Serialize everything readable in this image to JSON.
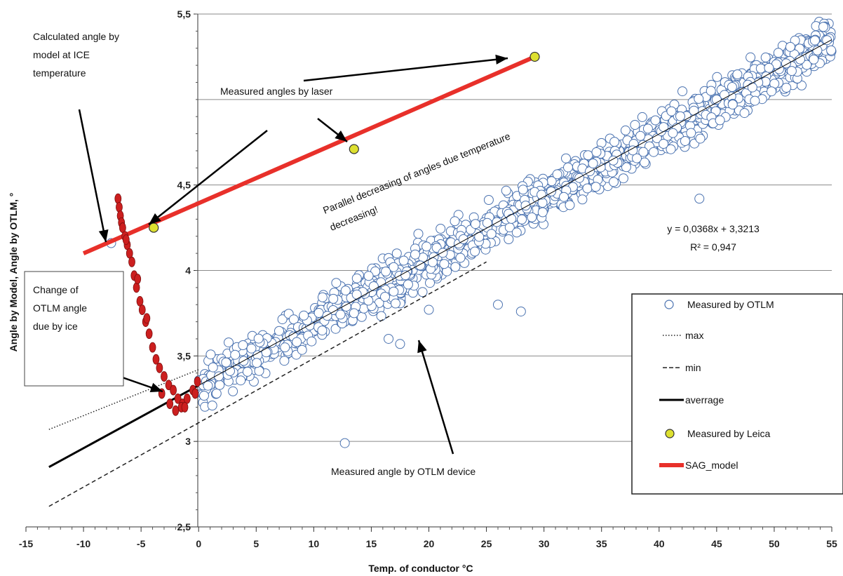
{
  "chart_data": {
    "type": "scatter",
    "title": "",
    "xlabel": "Temp. of conductor  °C",
    "ylabel": "Angle by Model, Angle by OTLM, °",
    "xlim": [
      -15,
      55
    ],
    "ylim": [
      2.5,
      5.5
    ],
    "x_ticks": [
      "-15",
      "-10",
      "-5",
      "0",
      "5",
      "10",
      "15",
      "20",
      "25",
      "30",
      "35",
      "40",
      "45",
      "50",
      "55"
    ],
    "x_tick_values": [
      -15,
      -10,
      -5,
      0,
      5,
      10,
      15,
      20,
      25,
      30,
      35,
      40,
      45,
      50,
      55
    ],
    "y_ticks": [
      "2,5",
      "3",
      "3,5",
      "4",
      "4,5",
      "5,5"
    ],
    "y_tick_values": [
      2.5,
      3,
      3.5,
      4,
      4.5,
      5.5
    ],
    "grid": "horizontal",
    "legend_position": "right",
    "trend": {
      "slope": 0.0368,
      "intercept": 3.3213,
      "equation": "y = 0,0368x + 3,3213",
      "r2": "R² = 0,947"
    },
    "series": [
      {
        "name": "Measured by OTLM",
        "kind": "scatter-hollow",
        "color": "#4a72b0",
        "x_range": [
          0,
          55
        ],
        "spread_approx": 0.13,
        "outliers": [
          [
            -7.6,
            4.16
          ],
          [
            12.7,
            2.99
          ],
          [
            17.5,
            3.57
          ],
          [
            28,
            3.76
          ],
          [
            26,
            3.8
          ],
          [
            20,
            3.77
          ],
          [
            13.5,
            3.75
          ],
          [
            16.5,
            3.6
          ],
          [
            43.5,
            4.42
          ],
          [
            7.5,
            3.55
          ],
          [
            45,
            5.0
          ]
        ]
      },
      {
        "name": "max",
        "kind": "dotted-line",
        "color": "#222222",
        "points": [
          [
            -13,
            3.07
          ],
          [
            0,
            3.42
          ]
        ]
      },
      {
        "name": "min",
        "kind": "dashed-line",
        "color": "#222222",
        "points": [
          [
            -13,
            2.62
          ],
          [
            25,
            4.05
          ]
        ]
      },
      {
        "name": "averrage",
        "kind": "solid-line",
        "color": "#000000",
        "points": [
          [
            -13,
            2.85
          ],
          [
            55,
            5.35
          ]
        ]
      },
      {
        "name": "Measured by Leica",
        "kind": "points",
        "color": "#dde030",
        "points": [
          [
            -3.9,
            4.25
          ],
          [
            13.5,
            4.71
          ],
          [
            29.2,
            5.25
          ]
        ]
      },
      {
        "name": "SAG_model",
        "kind": "thick-line",
        "color": "#e8302a",
        "points": [
          [
            -10,
            4.1
          ],
          [
            29.2,
            5.25
          ]
        ]
      },
      {
        "name": "",
        "kind": "filled-ellipses",
        "color": "#cc1f1f",
        "points": [
          [
            -7,
            4.42
          ],
          [
            -6.9,
            4.37
          ],
          [
            -6.8,
            4.32
          ],
          [
            -6.7,
            4.28
          ],
          [
            -6.6,
            4.25
          ],
          [
            -6.4,
            4.2
          ],
          [
            -6.2,
            4.15
          ],
          [
            -6.0,
            4.1
          ],
          [
            -5.8,
            4.05
          ],
          [
            -5.6,
            3.97
          ],
          [
            -5.4,
            3.9
          ],
          [
            -5.1,
            3.82
          ],
          [
            -4.9,
            3.77
          ],
          [
            -4.6,
            3.7
          ],
          [
            -4.3,
            3.63
          ],
          [
            -4.0,
            3.55
          ],
          [
            -3.7,
            3.48
          ],
          [
            -3.4,
            3.43
          ],
          [
            -3.0,
            3.38
          ],
          [
            -2.6,
            3.33
          ],
          [
            -2.2,
            3.3
          ],
          [
            -1.8,
            3.25
          ],
          [
            -1.4,
            3.22
          ],
          [
            -1.0,
            3.25
          ],
          [
            -0.5,
            3.3
          ],
          [
            -0.1,
            3.35
          ],
          [
            -2.0,
            3.18
          ],
          [
            -1.5,
            3.2
          ],
          [
            -2.5,
            3.22
          ],
          [
            -3.2,
            3.28
          ],
          [
            -5.3,
            3.95
          ],
          [
            -4.5,
            3.72
          ],
          [
            -6.3,
            4.18
          ],
          [
            -0.3,
            3.28
          ],
          [
            -1.2,
            3.2
          ]
        ]
      }
    ],
    "annotations": [
      {
        "lines": [
          "Calculated angle by",
          "model at ICE",
          "temperature"
        ]
      },
      {
        "lines": [
          "Measured angles by laser"
        ]
      },
      {
        "lines": [
          "Parallel decreasing of angles due temperature",
          "decreasing!"
        ]
      },
      {
        "lines": [
          "Change of",
          "OTLM angle",
          "due by ice"
        ]
      },
      {
        "lines": [
          "Measured angle by OTLM device"
        ]
      }
    ],
    "legend": [
      "Measured by OTLM",
      "max",
      "min",
      "averrage",
      "Measured by Leica",
      "SAG_model"
    ]
  }
}
